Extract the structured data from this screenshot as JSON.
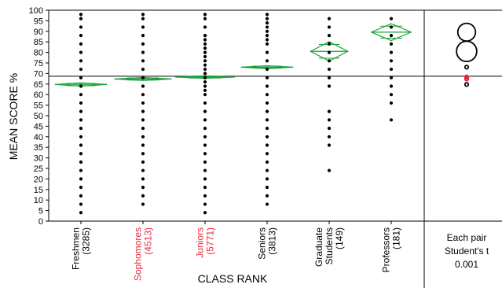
{
  "chart_data": {
    "type": "scatter",
    "subtype": "one-way means comparison with means diamonds and comparison circles",
    "xlabel": "CLASS RANK",
    "ylabel": "MEAN SCORE %",
    "ylim": [
      0,
      100
    ],
    "yticks": [
      0,
      5,
      10,
      15,
      20,
      25,
      30,
      35,
      40,
      45,
      50,
      55,
      60,
      65,
      70,
      75,
      80,
      85,
      90,
      95,
      100
    ],
    "grand_mean": 68.7,
    "colors": {
      "points": "#000000",
      "diamond": "#1aa33c",
      "highlight": "#e8273a",
      "axis": "#000000"
    },
    "categories": [
      {
        "name": "Freshmen",
        "count": "(3285)",
        "highlight": false,
        "mean": 64.8,
        "ci_half": 0.8,
        "diamond_half_width": 0.42,
        "points": [
          4,
          8,
          12,
          16,
          20,
          24,
          28,
          32,
          36,
          40,
          44,
          48,
          52,
          56,
          60,
          64,
          68,
          72,
          76,
          80,
          84,
          88,
          92,
          96,
          98
        ]
      },
      {
        "name": "Sophomores",
        "count": "(4513)",
        "highlight": true,
        "mean": 67.4,
        "ci_half": 0.7,
        "diamond_half_width": 0.46,
        "points": [
          8,
          12,
          16,
          20,
          24,
          28,
          32,
          36,
          40,
          44,
          48,
          52,
          56,
          60,
          64,
          68,
          72,
          76,
          80,
          84,
          88,
          92,
          96,
          98
        ]
      },
      {
        "name": "Juniors",
        "count": "(5771)",
        "highlight": true,
        "mean": 68.3,
        "ci_half": 0.6,
        "diamond_half_width": 0.48,
        "points": [
          4,
          8,
          12,
          16,
          20,
          24,
          28,
          32,
          36,
          40,
          44,
          48,
          52,
          56,
          60,
          62,
          64,
          66,
          68,
          70,
          72,
          74,
          76,
          78,
          80,
          82,
          84,
          86,
          88,
          92,
          96,
          98
        ]
      },
      {
        "name": "Seniors",
        "count": "(3813)",
        "highlight": false,
        "mean": 73.0,
        "ci_half": 0.7,
        "diamond_half_width": 0.42,
        "points": [
          8,
          12,
          16,
          20,
          24,
          28,
          32,
          36,
          40,
          44,
          48,
          52,
          56,
          60,
          64,
          68,
          72,
          76,
          80,
          84,
          86,
          88,
          90,
          92,
          94,
          96,
          98
        ]
      },
      {
        "name": "Graduate\nStudents",
        "count": "(149)",
        "highlight": false,
        "mean": 80.5,
        "ci_half": 4.6,
        "diamond_half_width": 0.3,
        "points": [
          24,
          36,
          40,
          44,
          48,
          52,
          64,
          68,
          72,
          76,
          80,
          84,
          88,
          92,
          96
        ]
      },
      {
        "name": "Professors",
        "count": "(181)",
        "highlight": false,
        "mean": 89.6,
        "ci_half": 4.0,
        "diamond_half_width": 0.32,
        "points": [
          48,
          56,
          60,
          64,
          68,
          72,
          76,
          80,
          84,
          88,
          92,
          96
        ]
      }
    ],
    "comparison_circles": {
      "label_lines": [
        "Each pair",
        "Student's t",
        "0.001"
      ],
      "circles": [
        {
          "center": 89.6,
          "radius": 4.2,
          "highlight": false
        },
        {
          "center": 80.5,
          "radius": 4.8,
          "highlight": false
        },
        {
          "center": 73.0,
          "radius": 0.8,
          "highlight": false
        },
        {
          "center": 68.3,
          "radius": 0.7,
          "highlight": true
        },
        {
          "center": 67.4,
          "radius": 0.7,
          "highlight": true
        },
        {
          "center": 64.8,
          "radius": 0.8,
          "highlight": false
        }
      ]
    }
  }
}
